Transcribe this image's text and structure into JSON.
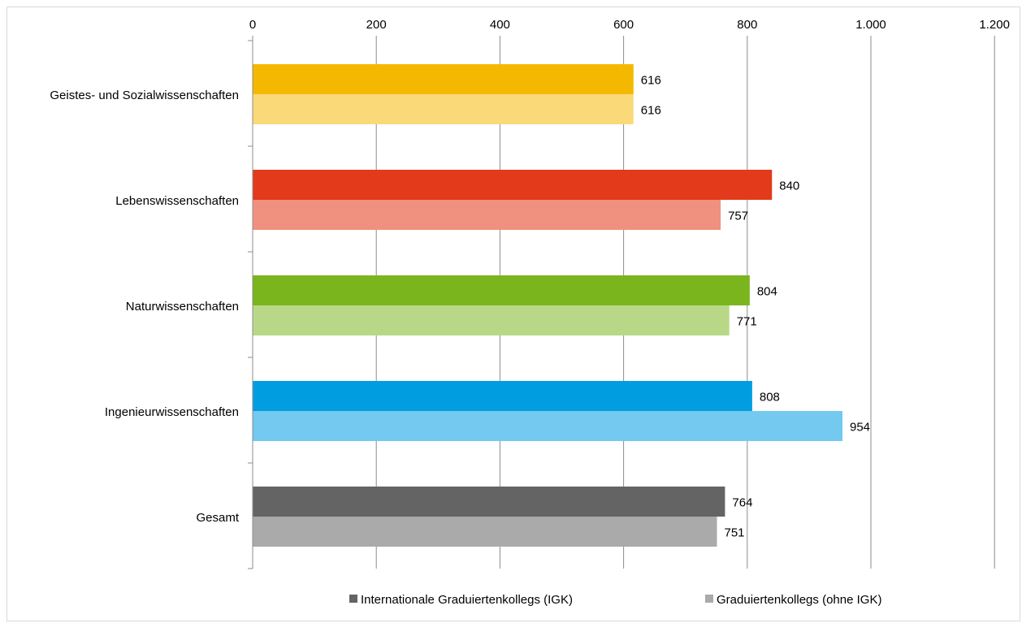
{
  "chart_data": {
    "type": "bar",
    "orientation": "horizontal",
    "categories": [
      "Geistes- und Sozialwissenschaften",
      "Lebenswissenschaften",
      "Naturwissenschaften",
      "Ingenieurwissenschaften",
      "Gesamt"
    ],
    "series": [
      {
        "name": "Internationale Graduiertenkollegs (IGK)",
        "values": [
          616,
          840,
          804,
          808,
          764
        ]
      },
      {
        "name": "Graduiertenkollegs (ohne IGK)",
        "values": [
          616,
          757,
          771,
          954,
          751
        ]
      }
    ],
    "bar_colors": [
      [
        "#f5b800",
        "#fad979"
      ],
      [
        "#e23a1a",
        "#f0907e"
      ],
      [
        "#7ab51d",
        "#b8d888"
      ],
      [
        "#009ee0",
        "#73c9ef"
      ],
      [
        "#646464",
        "#aaaaaa"
      ]
    ],
    "legend_colors": [
      "#646464",
      "#aaaaaa"
    ],
    "axis": {
      "xlim": [
        0,
        1200
      ],
      "ticks": [
        0,
        200,
        400,
        600,
        800,
        1000,
        1200
      ],
      "tick_labels": [
        "0",
        "200",
        "400",
        "600",
        "800",
        "1.000",
        "1.200"
      ],
      "position": "top"
    },
    "grid": true,
    "legend_position": "bottom",
    "title": "",
    "xlabel": "",
    "ylabel": ""
  }
}
